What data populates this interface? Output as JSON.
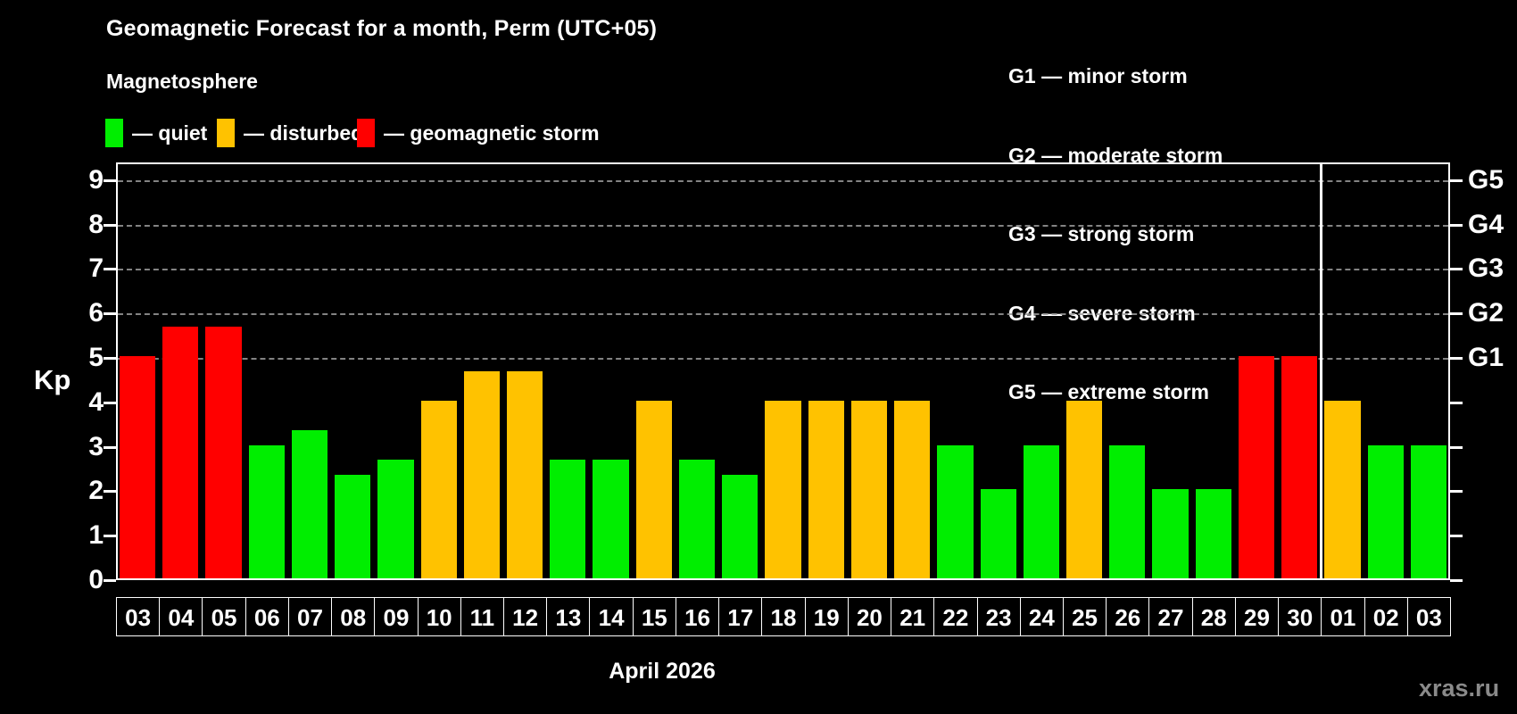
{
  "title": "Geomagnetic Forecast for a month, Perm (UTC+05)",
  "subtitle": "Magnetosphere",
  "legend": {
    "items": [
      {
        "name": "quiet",
        "label": "— quiet",
        "color": "#00ee00"
      },
      {
        "name": "disturbed",
        "label": "— disturbed",
        "color": "#ffc200"
      },
      {
        "name": "storm",
        "label": "— geomagnetic storm",
        "color": "#ff0000"
      }
    ]
  },
  "g_legend": [
    "G1 — minor storm",
    "G2 — moderate storm",
    "G3 — strong storm",
    "G4 — severe storm",
    "G5 — extreme storm"
  ],
  "footer": {
    "caption": "April 2026",
    "watermark": "xras.ru"
  },
  "chart_data": {
    "type": "bar",
    "title": "Geomagnetic Forecast for a month, Perm (UTC+05)",
    "ylabel": "Kp",
    "ylim": [
      0,
      9.4
    ],
    "grid": "dashed horizontal lines at Kp 5-9 only",
    "categories": [
      "03",
      "04",
      "05",
      "06",
      "07",
      "08",
      "09",
      "10",
      "11",
      "12",
      "13",
      "14",
      "15",
      "16",
      "17",
      "18",
      "19",
      "20",
      "21",
      "22",
      "23",
      "24",
      "25",
      "26",
      "27",
      "28",
      "29",
      "30",
      "01",
      "02",
      "03"
    ],
    "values": [
      5,
      5.67,
      5.67,
      3,
      3.33,
      2.33,
      2.67,
      4,
      4.67,
      4.67,
      2.67,
      2.67,
      4,
      2.67,
      2.33,
      4,
      4,
      4,
      4,
      3,
      2,
      3,
      4,
      3,
      2,
      2,
      5,
      5,
      4,
      3,
      3
    ],
    "statuses": [
      "storm",
      "storm",
      "storm",
      "quiet",
      "quiet",
      "quiet",
      "quiet",
      "disturbed",
      "disturbed",
      "disturbed",
      "quiet",
      "quiet",
      "disturbed",
      "quiet",
      "quiet",
      "disturbed",
      "disturbed",
      "disturbed",
      "disturbed",
      "quiet",
      "quiet",
      "quiet",
      "disturbed",
      "quiet",
      "quiet",
      "quiet",
      "storm",
      "storm",
      "disturbed",
      "quiet",
      "quiet"
    ],
    "status_colors": {
      "quiet": "#00ee00",
      "disturbed": "#ffc200",
      "storm": "#ff0000"
    },
    "left_ticks": [
      "0",
      "1",
      "2",
      "3",
      "4",
      "5",
      "6",
      "7",
      "8",
      "9"
    ],
    "gridlines_at": [
      5,
      6,
      7,
      8,
      9
    ],
    "right_axis_labels": [
      {
        "label": "G1",
        "kp": 5
      },
      {
        "label": "G2",
        "kp": 6
      },
      {
        "label": "G3",
        "kp": 7
      },
      {
        "label": "G4",
        "kp": 8
      },
      {
        "label": "G5",
        "kp": 9
      }
    ],
    "month_separator_after_index": 27,
    "legend_position": "top-left (quiet / disturbed / geomagnetic storm), top-right (G1-G5 storm scale)"
  }
}
